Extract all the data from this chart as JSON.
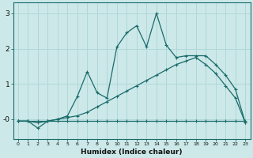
{
  "xlabel": "Humidex (Indice chaleur)",
  "bg_color": "#cce8e8",
  "grid_color": "#b0d8d8",
  "line_color": "#1a6b6b",
  "spine_color": "#1a6b6b",
  "xlim": [
    -0.5,
    23.5
  ],
  "ylim": [
    -0.55,
    3.3
  ],
  "yticks": [
    0,
    1,
    2,
    3
  ],
  "ytick_labels": [
    "-0",
    "1",
    "2",
    "3"
  ],
  "xticks": [
    0,
    1,
    2,
    3,
    4,
    5,
    6,
    7,
    8,
    9,
    10,
    11,
    12,
    13,
    14,
    15,
    16,
    17,
    18,
    19,
    20,
    21,
    22,
    23
  ],
  "series_flat_x": [
    0,
    1,
    2,
    3,
    4,
    5,
    6,
    7,
    8,
    9,
    10,
    11,
    12,
    13,
    14,
    15,
    16,
    17,
    18,
    19,
    20,
    21,
    22,
    23
  ],
  "series_flat_y": [
    -0.05,
    -0.05,
    -0.05,
    -0.05,
    -0.05,
    -0.05,
    -0.05,
    -0.05,
    -0.05,
    -0.05,
    -0.05,
    -0.05,
    -0.05,
    -0.05,
    -0.05,
    -0.05,
    -0.05,
    -0.05,
    -0.05,
    -0.05,
    -0.05,
    -0.05,
    -0.05,
    -0.05
  ],
  "series_smooth_x": [
    0,
    1,
    2,
    3,
    4,
    5,
    6,
    7,
    8,
    9,
    10,
    11,
    12,
    13,
    14,
    15,
    16,
    17,
    18,
    19,
    20,
    21,
    22,
    23
  ],
  "series_smooth_y": [
    -0.05,
    -0.05,
    -0.1,
    -0.05,
    0.0,
    0.05,
    0.1,
    0.2,
    0.35,
    0.5,
    0.65,
    0.8,
    0.95,
    1.1,
    1.25,
    1.4,
    1.55,
    1.65,
    1.75,
    1.55,
    1.3,
    0.95,
    0.6,
    -0.1
  ],
  "series_jagged_x": [
    0,
    1,
    2,
    3,
    4,
    5,
    6,
    7,
    8,
    9,
    10,
    11,
    12,
    13,
    14,
    15,
    16,
    17,
    18,
    19,
    20,
    21,
    22,
    23
  ],
  "series_jagged_y": [
    -0.05,
    -0.05,
    -0.25,
    -0.05,
    0.0,
    0.1,
    0.65,
    1.35,
    0.75,
    0.6,
    2.05,
    2.45,
    2.65,
    2.05,
    3.0,
    2.1,
    1.75,
    1.8,
    1.8,
    1.8,
    1.55,
    1.25,
    0.85,
    -0.1
  ]
}
